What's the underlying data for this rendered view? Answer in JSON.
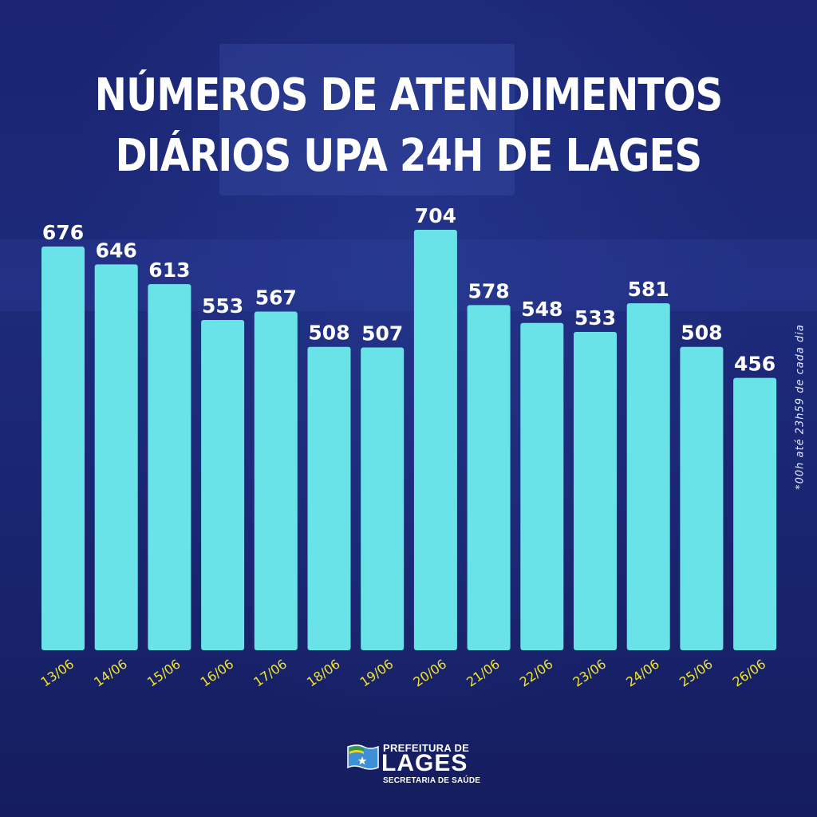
{
  "title": {
    "line1": "NÚMEROS DE ATENDIMENTOS",
    "line2": "DIÁRIOS UPA 24H DE LAGES"
  },
  "footnote": "*00h até 23h59 de cada dia",
  "logo": {
    "line1": "PREFEITURA DE",
    "line2": "LAGES",
    "line3": "SECRETARIA DE SAÚDE"
  },
  "colors": {
    "background": "#17206a",
    "bar": "#6ae3e8",
    "value_label": "#ffffff",
    "date_label": "#f3e62a"
  },
  "chart_data": {
    "type": "bar",
    "title": "NÚMEROS DE ATENDIMENTOS DIÁRIOS UPA 24H DE LAGES",
    "xlabel": "",
    "ylabel": "",
    "categories": [
      "13/06",
      "14/06",
      "15/06",
      "16/06",
      "17/06",
      "18/06",
      "19/06",
      "20/06",
      "21/06",
      "22/06",
      "23/06",
      "24/06",
      "25/06",
      "26/06"
    ],
    "values": [
      676,
      646,
      613,
      553,
      567,
      508,
      507,
      704,
      578,
      548,
      533,
      581,
      508,
      456
    ],
    "ylim": [
      0,
      704
    ],
    "grid": false,
    "legend": "none",
    "data_labels": true,
    "annotation": "*00h até 23h59 de cada dia"
  }
}
